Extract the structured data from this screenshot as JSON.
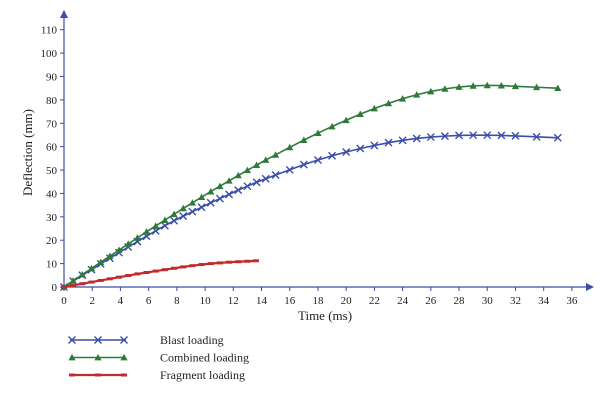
{
  "chart_data": {
    "type": "line",
    "xlabel": "Time (ms)",
    "ylabel": "Deflection (mm)",
    "xlim": [
      0,
      37
    ],
    "ylim": [
      0,
      115
    ],
    "xticks": [
      "0",
      "2",
      "4",
      "6",
      "8",
      "10",
      "12",
      "14",
      "16",
      "18",
      "20",
      "22",
      "24",
      "26",
      "28",
      "30",
      "32",
      "34",
      "36"
    ],
    "yticks": [
      "0",
      "10",
      "20",
      "30",
      "40",
      "50",
      "60",
      "70",
      "80",
      "90",
      "100",
      "110"
    ],
    "grid": false,
    "legend_position": "bottom-left",
    "series": [
      {
        "name": "Blast loading",
        "color": "#3b4da8",
        "marker": "x",
        "x": [
          0,
          0.65,
          1.3,
          1.95,
          2.6,
          3.25,
          3.9,
          4.55,
          5.2,
          5.85,
          6.5,
          7.15,
          7.8,
          8.45,
          9.1,
          9.75,
          10.4,
          11.05,
          11.7,
          12.35,
          13,
          13.65,
          14.3,
          15,
          16,
          17,
          18,
          19,
          20,
          21,
          22,
          23,
          24,
          25,
          26,
          27,
          28,
          29,
          30,
          31,
          32,
          33.5,
          35
        ],
        "y": [
          0,
          2.5,
          5,
          7.4,
          9.9,
          12.3,
          14.7,
          17.1,
          19.4,
          21.7,
          24,
          26.2,
          28.3,
          30.3,
          32.2,
          34.1,
          36,
          37.8,
          39.6,
          41.4,
          43.1,
          44.8,
          46.3,
          47.9,
          50.1,
          52.3,
          54.3,
          56.1,
          57.7,
          59.2,
          60.5,
          61.7,
          62.7,
          63.5,
          64.1,
          64.5,
          64.8,
          64.9,
          64.9,
          64.8,
          64.6,
          64.2,
          63.8
        ]
      },
      {
        "name": "Combined loading",
        "color": "#2f7a3a",
        "marker": "triangle",
        "x": [
          0,
          0.65,
          1.3,
          1.95,
          2.6,
          3.25,
          3.9,
          4.55,
          5.2,
          5.85,
          6.5,
          7.15,
          7.8,
          8.45,
          9.1,
          9.75,
          10.4,
          11.05,
          11.7,
          12.35,
          13,
          13.65,
          14.3,
          15,
          16,
          17,
          18,
          19,
          20,
          21,
          22,
          23,
          24,
          25,
          26,
          27,
          28,
          29,
          30,
          31,
          32,
          33.5,
          35
        ],
        "y": [
          0,
          2.7,
          5.3,
          7.9,
          10.6,
          13.2,
          15.8,
          18.4,
          21,
          23.6,
          26.1,
          28.6,
          31.1,
          33.6,
          36,
          38.4,
          40.8,
          43.1,
          45.4,
          47.7,
          49.9,
          52.1,
          54.3,
          56.5,
          59.7,
          62.8,
          65.8,
          68.6,
          71.3,
          73.9,
          76.3,
          78.5,
          80.5,
          82.2,
          83.6,
          84.7,
          85.5,
          86,
          86.2,
          86.1,
          85.8,
          85.4,
          85
        ]
      },
      {
        "name": "Fragment loading",
        "color": "#c02b2b",
        "marker": "dash",
        "x": [
          0,
          0.65,
          1.3,
          1.95,
          2.6,
          3.25,
          3.9,
          4.55,
          5.2,
          5.85,
          6.5,
          7.15,
          7.8,
          8.45,
          9.1,
          9.75,
          10.4,
          11.05,
          11.7,
          12.35,
          13,
          13.6
        ],
        "y": [
          0,
          0.7,
          1.4,
          2.1,
          2.8,
          3.5,
          4.2,
          4.9,
          5.6,
          6.2,
          6.8,
          7.4,
          8,
          8.6,
          9.1,
          9.6,
          10,
          10.3,
          10.6,
          10.8,
          11,
          11.2
        ]
      }
    ]
  }
}
